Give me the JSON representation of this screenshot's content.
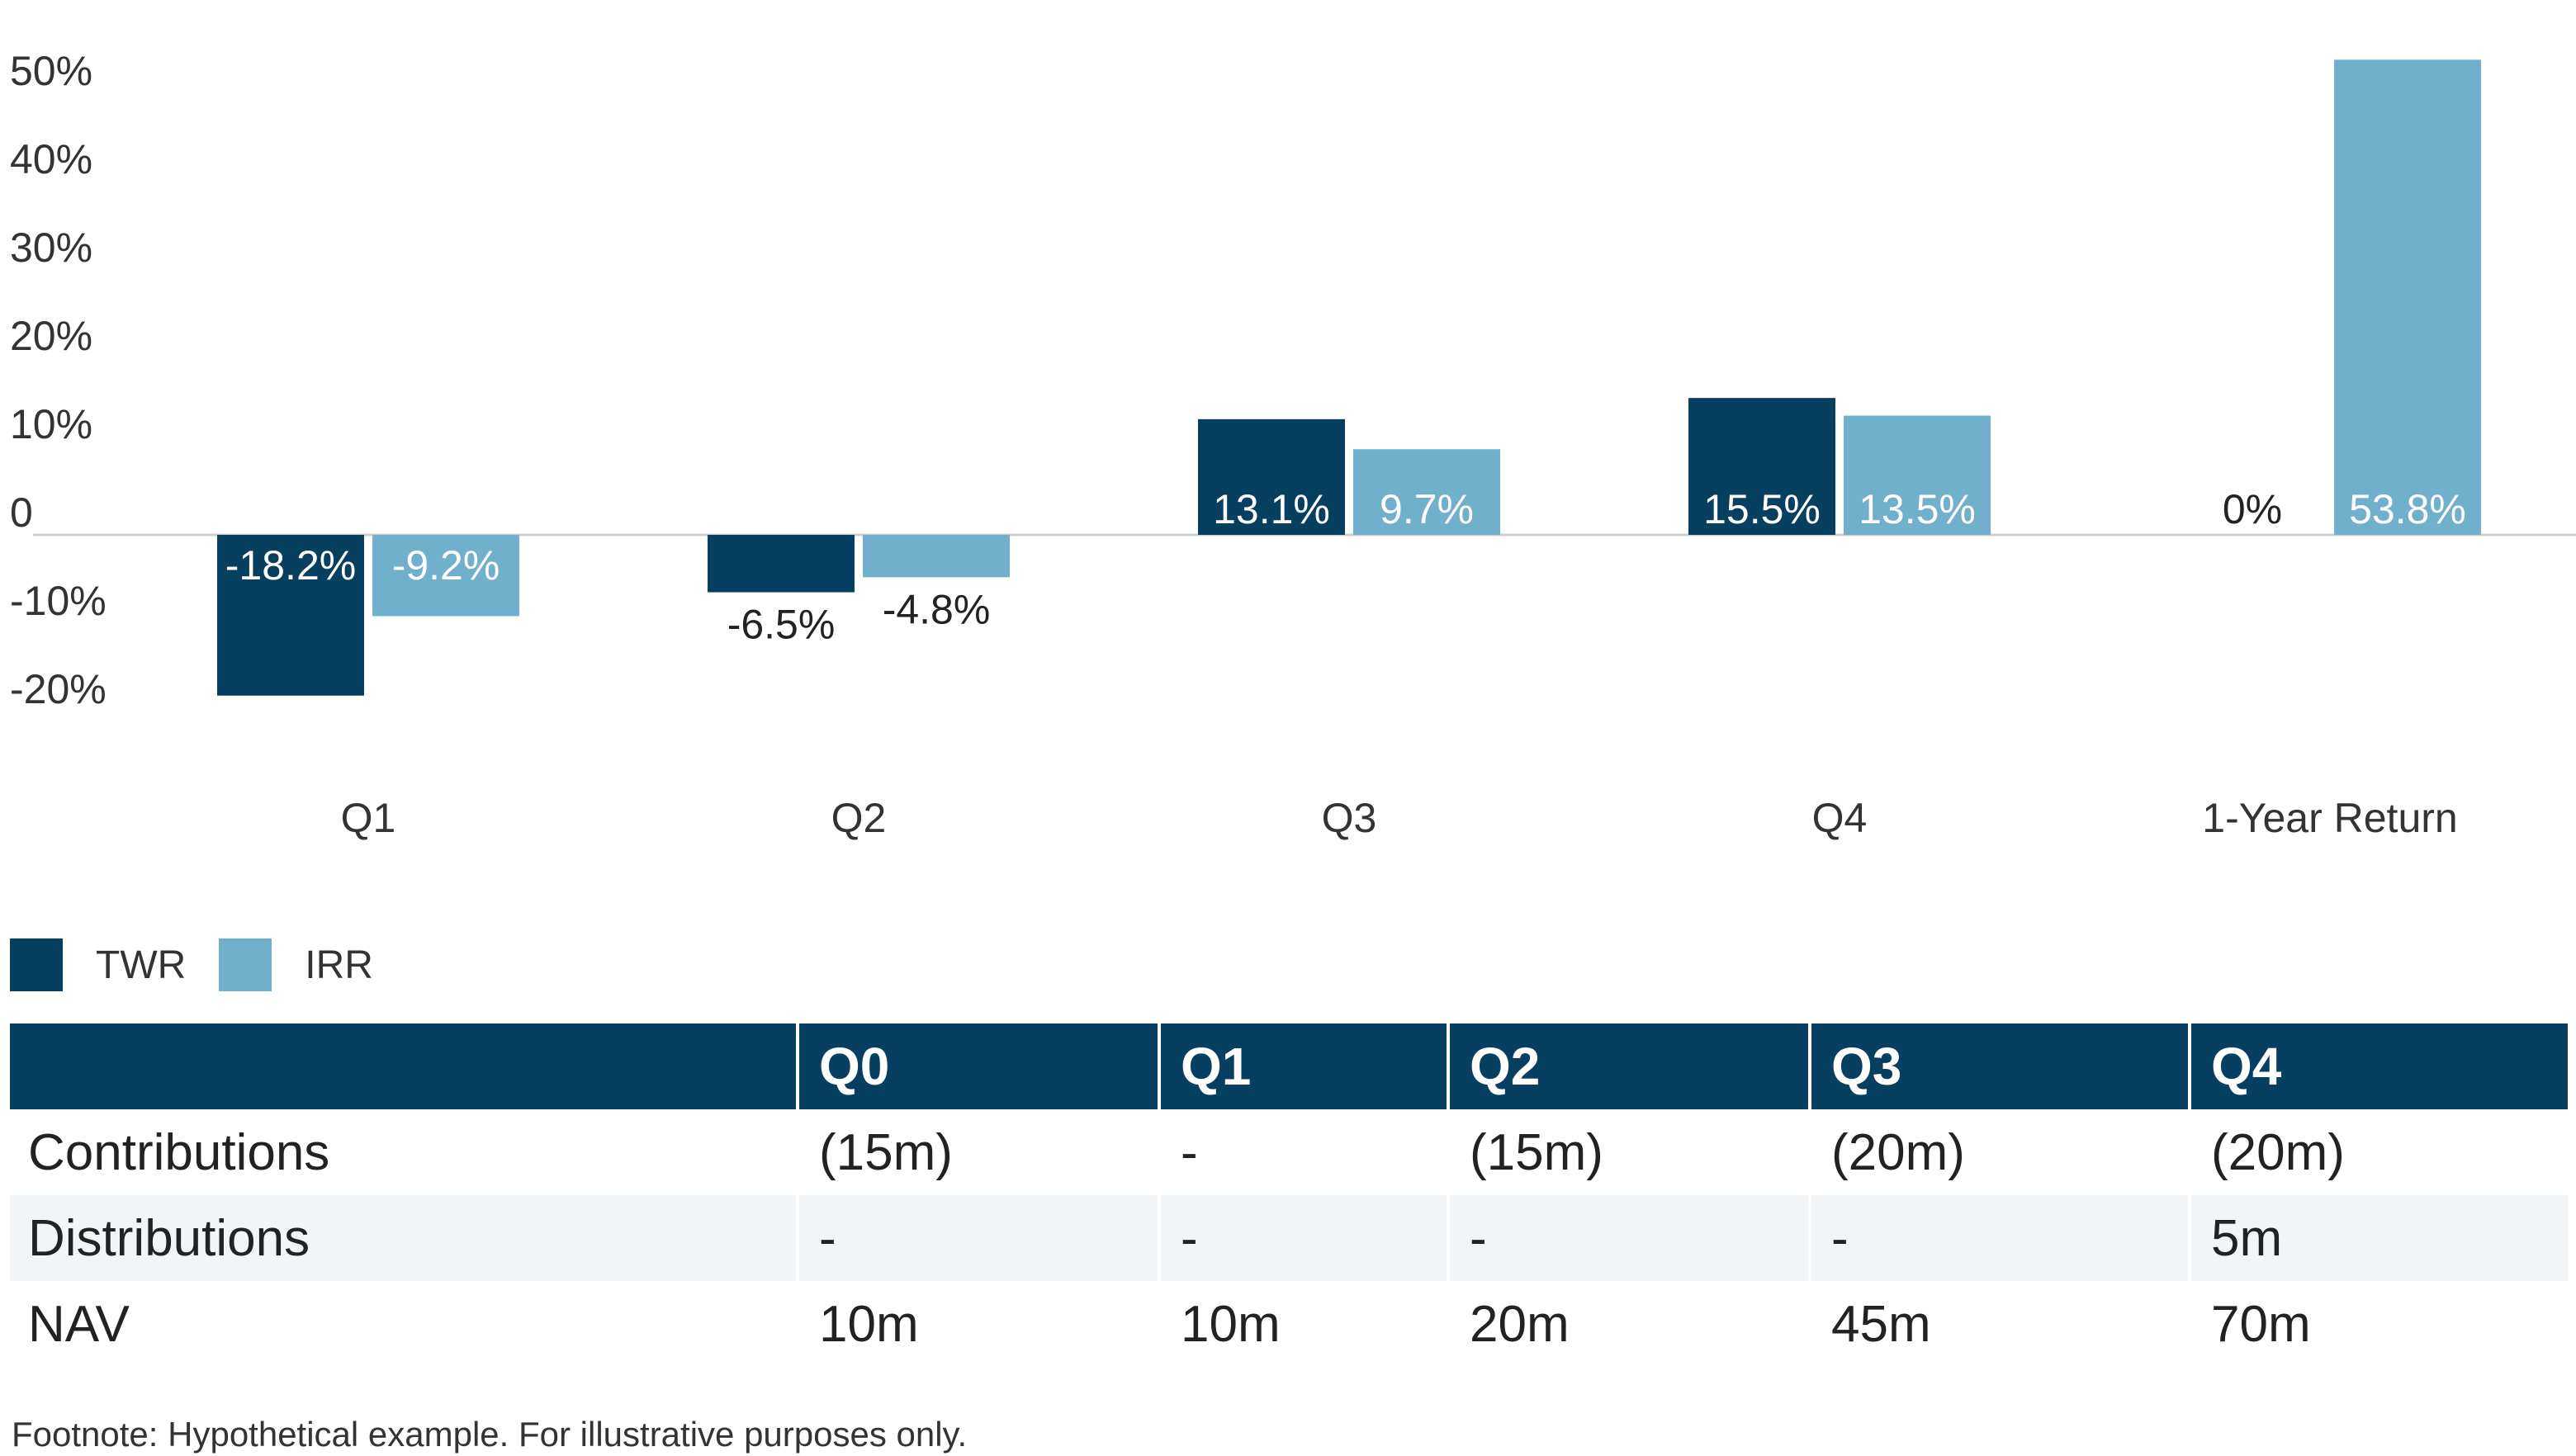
{
  "chart_data": {
    "type": "bar",
    "categories": [
      "Q1",
      "Q2",
      "Q3",
      "Q4",
      "1-Year Return"
    ],
    "series": [
      {
        "name": "TWR",
        "color": "#073f61",
        "values": [
          -18.2,
          -6.5,
          13.1,
          15.5,
          0
        ],
        "labels": [
          "-18.2%",
          "-6.5%",
          "13.1%",
          "15.5%",
          "0%"
        ]
      },
      {
        "name": "IRR",
        "color": "#70b0cd",
        "values": [
          -9.2,
          -4.8,
          9.7,
          13.5,
          53.8
        ],
        "labels": [
          "-9.2%",
          "-4.8%",
          "9.7%",
          "13.5%",
          "53.8%"
        ]
      }
    ],
    "yticks": [
      50,
      40,
      30,
      20,
      10,
      0,
      -10,
      -20
    ],
    "ytick_labels": [
      "50%",
      "40%",
      "30%",
      "20%",
      "10%",
      "0",
      "-10%",
      "-20%"
    ],
    "ylim": [
      -20,
      50
    ],
    "grid": false,
    "legend": "bottom-left"
  },
  "table": {
    "headers": [
      "",
      "Q0",
      "Q1",
      "Q2",
      "Q3",
      "Q4"
    ],
    "rows": [
      {
        "label": "Contributions",
        "values": [
          "(15m)",
          "-",
          "(15m)",
          "(20m)",
          "(20m)"
        ]
      },
      {
        "label": "Distributions",
        "values": [
          "-",
          "-",
          "-",
          "-",
          "5m"
        ]
      },
      {
        "label": "NAV",
        "values": [
          "10m",
          "10m",
          "20m",
          "45m",
          "70m"
        ]
      }
    ],
    "header_color": "#073f61",
    "alt_row_color": "#f1f5f8"
  },
  "footnote": "Footnote: Hypothetical example. For illustrative purposes only."
}
